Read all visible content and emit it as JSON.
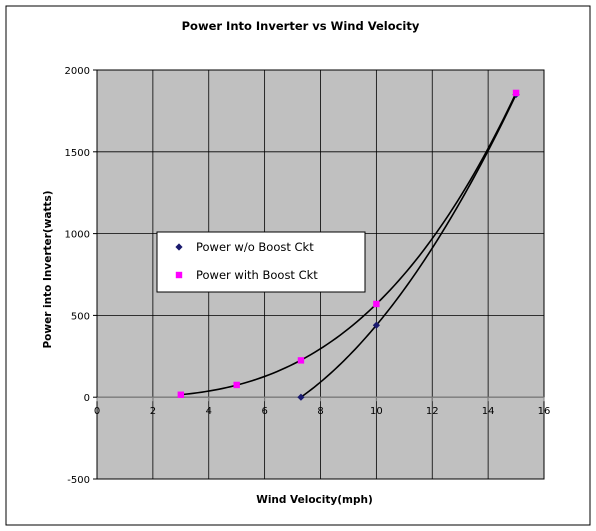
{
  "chart_data": {
    "type": "scatter",
    "title": "Power Into Inverter vs Wind Velocity",
    "xlabel": "Wind Velocity(mph)",
    "ylabel": "Power into Inverter(watts)",
    "xlim": [
      0,
      16
    ],
    "ylim": [
      -500,
      2000
    ],
    "x_ticks": [
      0,
      2,
      4,
      6,
      8,
      10,
      12,
      14,
      16
    ],
    "y_ticks": [
      -500,
      0,
      500,
      1000,
      1500,
      2000
    ],
    "grid": true,
    "legend_position": "center-left",
    "plot_background": "#c0c0c0",
    "series": [
      {
        "name": "Power w/o Boost Ckt",
        "marker": "diamond",
        "color": "#1a1a6e",
        "points": [
          [
            7.3,
            0
          ],
          [
            10,
            440
          ],
          [
            15,
            1850
          ]
        ]
      },
      {
        "name": "Power with Boost Ckt",
        "marker": "square",
        "color": "#ff00ff",
        "points": [
          [
            3,
            15
          ],
          [
            5,
            75
          ],
          [
            7.3,
            225
          ],
          [
            10,
            570
          ],
          [
            15,
            1860
          ]
        ]
      }
    ],
    "trendlines": [
      {
        "series": "Power w/o Boost Ckt",
        "color": "#000000",
        "x_range": [
          7.3,
          15
        ]
      },
      {
        "series": "Power with Boost Ckt",
        "color": "#000000",
        "x_range": [
          3,
          15
        ]
      }
    ]
  }
}
